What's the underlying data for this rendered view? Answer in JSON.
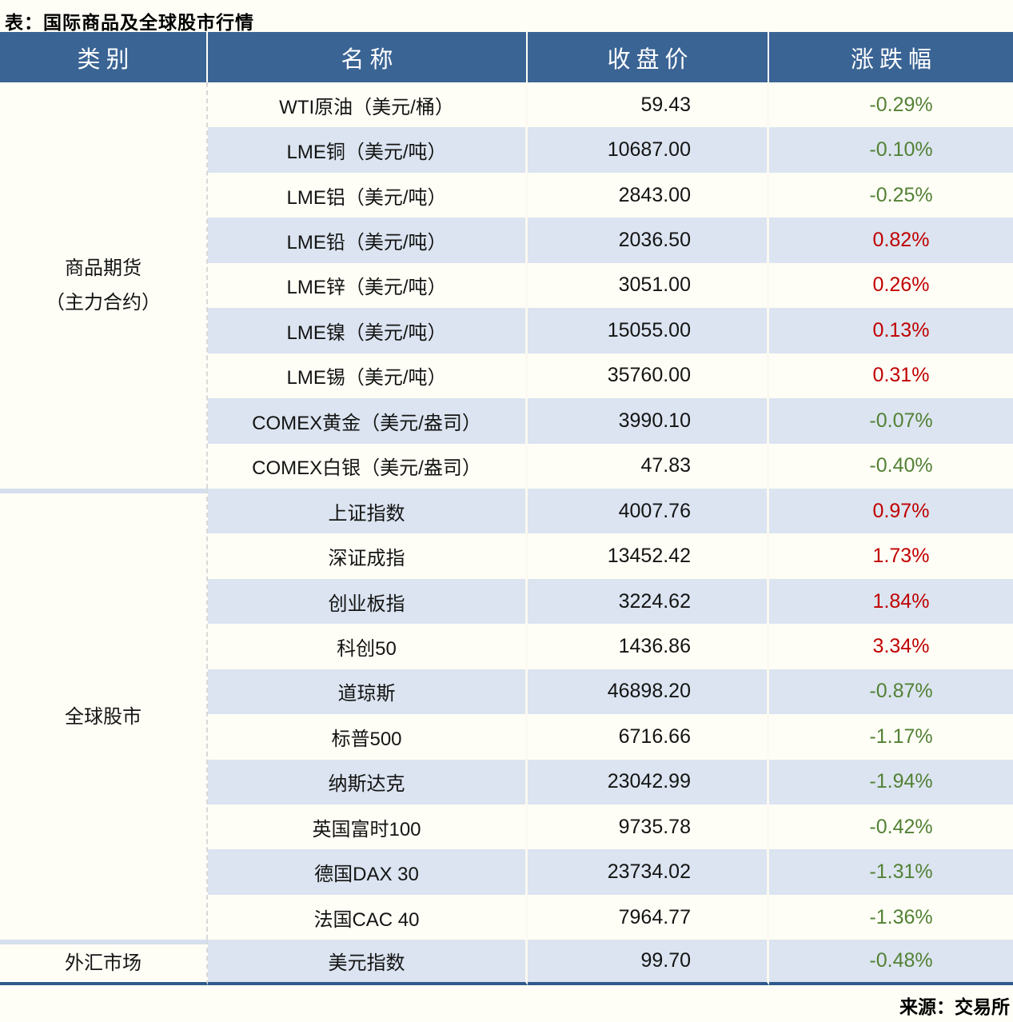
{
  "colors": {
    "header_bg": "#3A6494",
    "header_text": "#FFFFFF",
    "stripe": "#DBE4F0",
    "page_bg": "#FFFEF6",
    "up": "#C00000",
    "down": "#538135",
    "bottom_border": "#2F5B8B",
    "section_divider": "#D5DFED"
  },
  "chart_data": {
    "type": "table",
    "title": "表：国际商品及全球股市行情",
    "source": "来源：交易所",
    "columns": [
      "类别",
      "名称",
      "收盘价",
      "涨跌幅"
    ],
    "groups": [
      {
        "category": "商品期货（主力合约）",
        "category_lines": [
          "商品期货",
          "（主力合约）"
        ],
        "rows": [
          {
            "name": "WTI原油（美元/桶）",
            "close": "59.43",
            "change": "-0.29%"
          },
          {
            "name": "LME铜（美元/吨）",
            "close": "10687.00",
            "change": "-0.10%"
          },
          {
            "name": "LME铝（美元/吨）",
            "close": "2843.00",
            "change": "-0.25%"
          },
          {
            "name": "LME铅（美元/吨）",
            "close": "2036.50",
            "change": "0.82%"
          },
          {
            "name": "LME锌（美元/吨）",
            "close": "3051.00",
            "change": "0.26%"
          },
          {
            "name": "LME镍（美元/吨）",
            "close": "15055.00",
            "change": "0.13%"
          },
          {
            "name": "LME锡（美元/吨）",
            "close": "35760.00",
            "change": "0.31%"
          },
          {
            "name": "COMEX黄金（美元/盎司）",
            "close": "3990.10",
            "change": "-0.07%"
          },
          {
            "name": "COMEX白银（美元/盎司）",
            "close": "47.83",
            "change": "-0.40%"
          }
        ]
      },
      {
        "category": "全球股市",
        "category_lines": [
          "全球股市"
        ],
        "rows": [
          {
            "name": "上证指数",
            "close": "4007.76",
            "change": "0.97%"
          },
          {
            "name": "深证成指",
            "close": "13452.42",
            "change": "1.73%"
          },
          {
            "name": "创业板指",
            "close": "3224.62",
            "change": "1.84%"
          },
          {
            "name": "科创50",
            "close": "1436.86",
            "change": "3.34%"
          },
          {
            "name": "道琼斯",
            "close": "46898.20",
            "change": "-0.87%"
          },
          {
            "name": "标普500",
            "close": "6716.66",
            "change": "-1.17%"
          },
          {
            "name": "纳斯达克",
            "close": "23042.99",
            "change": "-1.94%"
          },
          {
            "name": "英国富时100",
            "close": "9735.78",
            "change": "-0.42%"
          },
          {
            "name": "德国DAX 30",
            "close": "23734.02",
            "change": "-1.31%"
          },
          {
            "name": "法国CAC 40",
            "close": "7964.77",
            "change": "-1.36%"
          }
        ]
      },
      {
        "category": "外汇市场",
        "category_lines": [
          "外汇市场"
        ],
        "rows": [
          {
            "name": "美元指数",
            "close": "99.70",
            "change": "-0.48%"
          }
        ]
      }
    ]
  }
}
